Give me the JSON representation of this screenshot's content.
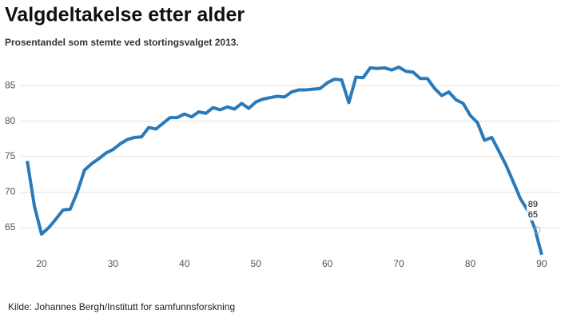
{
  "chart_data": {
    "type": "line",
    "title": "Valgdeltakelse etter alder",
    "subtitle": "Prosentandel som stemte ved stortingsvalget 2013.",
    "source": "Kilde: Johannes Bergh/Institutt for samfunnsforskning",
    "color": "#2a7ab9",
    "grid": true,
    "x": [
      18,
      19,
      20,
      21,
      22,
      23,
      24,
      25,
      26,
      27,
      28,
      29,
      30,
      31,
      32,
      33,
      34,
      35,
      36,
      37,
      38,
      39,
      40,
      41,
      42,
      43,
      44,
      45,
      46,
      47,
      48,
      49,
      50,
      51,
      52,
      53,
      54,
      55,
      56,
      57,
      58,
      59,
      60,
      61,
      62,
      63,
      64,
      65,
      66,
      67,
      68,
      69,
      70,
      71,
      72,
      73,
      74,
      75,
      76,
      77,
      78,
      79,
      80,
      81,
      82,
      83,
      84,
      85,
      86,
      87,
      88,
      89,
      90
    ],
    "values": [
      74.4,
      68,
      64.1,
      65,
      66.2,
      67.5,
      67.6,
      70,
      73.1,
      74,
      74.7,
      75.5,
      76,
      76.8,
      77.4,
      77.7,
      77.8,
      79.1,
      78.9,
      79.7,
      80.5,
      80.5,
      81,
      80.6,
      81.3,
      81.1,
      81.9,
      81.6,
      82,
      81.7,
      82.5,
      81.8,
      82.7,
      83.1,
      83.3,
      83.5,
      83.4,
      84.1,
      84.4,
      84.4,
      84.5,
      84.6,
      85.4,
      85.9,
      85.8,
      82.6,
      86.2,
      86.1,
      87.5,
      87.4,
      87.5,
      87.2,
      87.6,
      87,
      86.9,
      86,
      86,
      84.6,
      83.6,
      84.1,
      83,
      82.5,
      80.8,
      79.8,
      77.3,
      77.7,
      75.8,
      73.8,
      71.5,
      69.1,
      67.5,
      65,
      61.2
    ],
    "xlim": [
      15,
      91.3
    ],
    "ylim": [
      60.5,
      88.5
    ],
    "xticks": [
      20,
      30,
      40,
      50,
      60,
      70,
      80,
      90
    ],
    "yticks": [
      65,
      70,
      75,
      80,
      85
    ],
    "tooltip_index": 71
  }
}
